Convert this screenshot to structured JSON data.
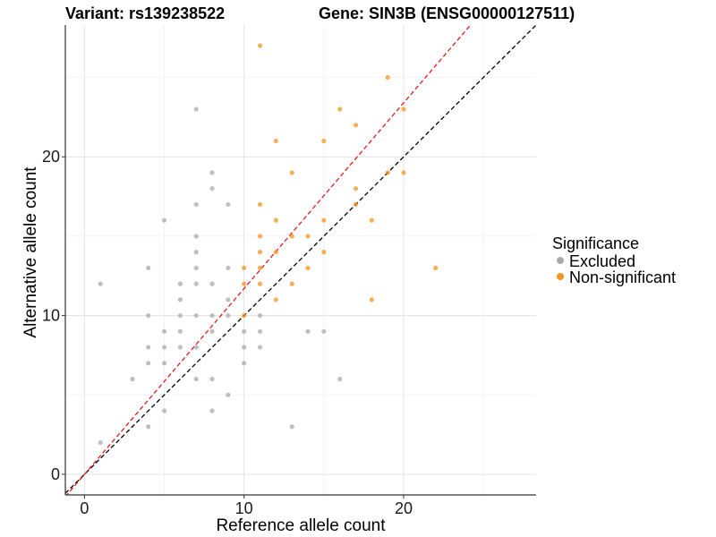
{
  "chart_data": {
    "type": "scatter",
    "title_left": "Variant: rs139238522",
    "title_right": "Gene: SIN3B (ENSG00000127511)",
    "xlabel": "Reference allele count",
    "ylabel": "Alternative allele count",
    "xlim": [
      -1.2,
      28.3
    ],
    "ylim": [
      -1.3,
      28.3
    ],
    "x_ticks": [
      0,
      10,
      20
    ],
    "y_ticks": [
      0,
      10,
      20
    ],
    "grid": true,
    "legend": {
      "title": "Significance",
      "position": "right",
      "entries": [
        {
          "name": "Excluded",
          "color": "#aaaaaa"
        },
        {
          "name": "Non-significant",
          "color": "#f7941d"
        }
      ]
    },
    "reference_lines": [
      {
        "name": "identity",
        "slope": 1,
        "intercept": 0,
        "color": "#000000",
        "style": "dashed"
      },
      {
        "name": "fit",
        "slope": 1.17,
        "intercept": 0,
        "color": "#e41a1c",
        "style": "dashed"
      }
    ],
    "series": [
      {
        "name": "Excluded",
        "color": "#aaaaaa",
        "points": [
          [
            1,
            2
          ],
          [
            1,
            12
          ],
          [
            3,
            6
          ],
          [
            4,
            3
          ],
          [
            4,
            7
          ],
          [
            4,
            8
          ],
          [
            4,
            10
          ],
          [
            4,
            13
          ],
          [
            5,
            4
          ],
          [
            5,
            7
          ],
          [
            5,
            8
          ],
          [
            5,
            9
          ],
          [
            5,
            16
          ],
          [
            6,
            8
          ],
          [
            6,
            9
          ],
          [
            6,
            10
          ],
          [
            6,
            11
          ],
          [
            6,
            12
          ],
          [
            7,
            6
          ],
          [
            7,
            8
          ],
          [
            7,
            10
          ],
          [
            7,
            12
          ],
          [
            7,
            13
          ],
          [
            7,
            14
          ],
          [
            7,
            15
          ],
          [
            7,
            17
          ],
          [
            7,
            23
          ],
          [
            8,
            4
          ],
          [
            8,
            6
          ],
          [
            8,
            9
          ],
          [
            8,
            10
          ],
          [
            8,
            12
          ],
          [
            8,
            18
          ],
          [
            8,
            19
          ],
          [
            9,
            5
          ],
          [
            9,
            10
          ],
          [
            9,
            11
          ],
          [
            9,
            13
          ],
          [
            9,
            17
          ],
          [
            10,
            7
          ],
          [
            10,
            8
          ],
          [
            10,
            9
          ],
          [
            11,
            8
          ],
          [
            11,
            9
          ],
          [
            11,
            10
          ],
          [
            13,
            3
          ],
          [
            14,
            9
          ],
          [
            15,
            9
          ],
          [
            16,
            6
          ]
        ]
      },
      {
        "name": "Non-significant",
        "color": "#f7941d",
        "points": [
          [
            10,
            10
          ],
          [
            10,
            12
          ],
          [
            10,
            13
          ],
          [
            11,
            12
          ],
          [
            11,
            13
          ],
          [
            11,
            14
          ],
          [
            11,
            15
          ],
          [
            11,
            17
          ],
          [
            11,
            27
          ],
          [
            12,
            11
          ],
          [
            12,
            14
          ],
          [
            12,
            16
          ],
          [
            12,
            21
          ],
          [
            13,
            12
          ],
          [
            13,
            15
          ],
          [
            13,
            19
          ],
          [
            14,
            13
          ],
          [
            14,
            15
          ],
          [
            15,
            14
          ],
          [
            15,
            16
          ],
          [
            15,
            21
          ],
          [
            16,
            23
          ],
          [
            17,
            17
          ],
          [
            17,
            18
          ],
          [
            17,
            22
          ],
          [
            18,
            11
          ],
          [
            18,
            16
          ],
          [
            19,
            19
          ],
          [
            19,
            25
          ],
          [
            20,
            19
          ],
          [
            20,
            23
          ],
          [
            22,
            13
          ]
        ]
      }
    ]
  }
}
